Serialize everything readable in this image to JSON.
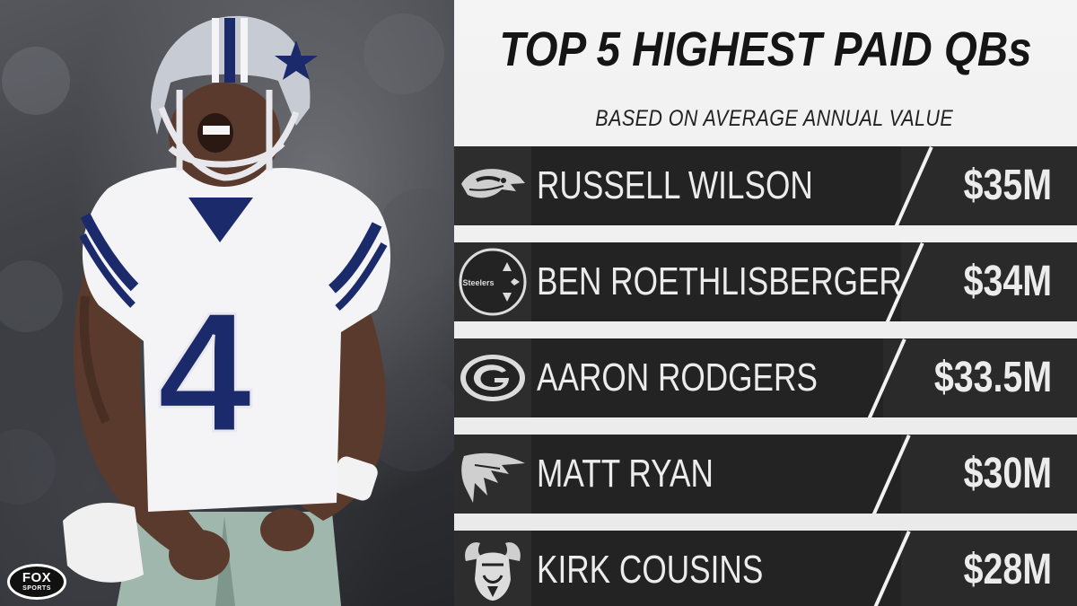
{
  "title": "TOP 5 HIGHEST PAID QBs",
  "subtitle": "BASED ON AVERAGE ANNUAL VALUE",
  "brand": {
    "line1": "FOX",
    "line2": "SPORTS"
  },
  "jersey_number": "4",
  "rows": [
    {
      "name": "RUSSELL WILSON",
      "amount": "$35M",
      "team_icon": "seahawks-logo-icon"
    },
    {
      "name": "BEN ROETHLISBERGER",
      "amount": "$34M",
      "team_icon": "steelers-logo-icon",
      "logo_text": "Steelers"
    },
    {
      "name": "AARON RODGERS",
      "amount": "$33.5M",
      "team_icon": "packers-logo-icon"
    },
    {
      "name": "MATT RYAN",
      "amount": "$30M",
      "team_icon": "falcons-logo-icon"
    },
    {
      "name": "KIRK COUSINS",
      "amount": "$28M",
      "team_icon": "vikings-logo-icon"
    }
  ],
  "colors": {
    "row_bg": "#232323",
    "panel_bg": "#f0f0f0",
    "jersey_blue": "#1b2a6b",
    "jersey_white": "#f4f4f6",
    "pants_green": "#9fb7ad"
  }
}
